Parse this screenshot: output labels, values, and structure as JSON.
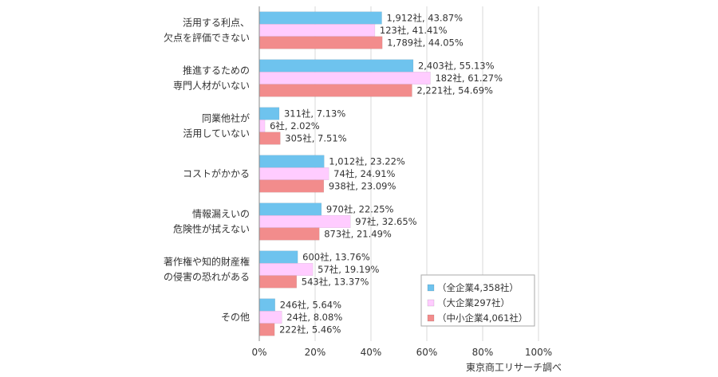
{
  "chart_data": {
    "type": "bar",
    "orientation": "horizontal",
    "categories": [
      [
        "活用する利点、",
        "欠点を評価できない"
      ],
      [
        "推進するための",
        "専門人材がいない"
      ],
      [
        "同業他社が",
        "活用していない"
      ],
      [
        "コストがかかる"
      ],
      [
        "情報漏えいの",
        "危険性が拭えない"
      ],
      [
        "著作権や知的財産権",
        "の侵害の恐れがある"
      ],
      [
        "その他"
      ]
    ],
    "series": [
      {
        "name": "（全企業4,358社）",
        "color": "#6EC3EE",
        "values": [
          43.87,
          55.13,
          7.13,
          23.22,
          22.25,
          13.76,
          5.64
        ],
        "labels": [
          "1,912社, 43.87%",
          "2,403社, 55.13%",
          "311社, 7.13%",
          "1,012社, 23.22%",
          "970社, 22.25%",
          "600社, 13.76%",
          "246社, 5.64%"
        ]
      },
      {
        "name": "（大企業297社）",
        "color": "#FFCCFF",
        "values": [
          41.41,
          61.27,
          2.02,
          24.91,
          32.65,
          19.19,
          8.08
        ],
        "labels": [
          "123社, 41.41%",
          "182社, 61.27%",
          "6社, 2.02%",
          "74社, 24.91%",
          "97社, 32.65%",
          "57社, 19.19%",
          "24社, 8.08%"
        ]
      },
      {
        "name": "（中小企業4,061社）",
        "color": "#F28C8C",
        "values": [
          44.05,
          54.69,
          7.51,
          23.09,
          21.49,
          13.37,
          5.46
        ],
        "labels": [
          "1,789社, 44.05%",
          "2,221社, 54.69%",
          "305社, 7.51%",
          "938社, 23.09%",
          "873社, 21.49%",
          "543社, 13.37%",
          "222社, 5.46%"
        ]
      }
    ],
    "xlim": [
      0,
      100
    ],
    "xticks": [
      "0%",
      "20%",
      "40%",
      "60%",
      "80%",
      "100%"
    ],
    "grid": true,
    "legend_position": "bottom-right",
    "source": "東京商工リサーチ調べ"
  }
}
